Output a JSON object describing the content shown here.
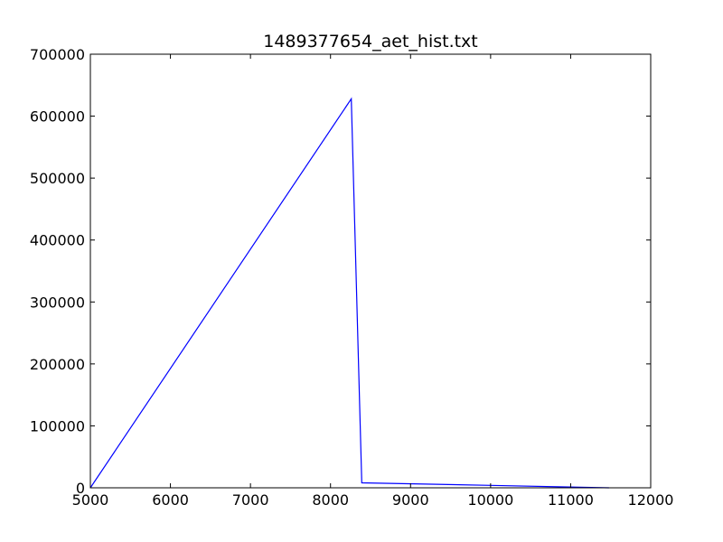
{
  "chart_data": {
    "type": "line",
    "title": "1489377654_aet_hist.txt",
    "xlabel": "",
    "ylabel": "",
    "xlim": [
      5000,
      12000
    ],
    "ylim": [
      0,
      700000
    ],
    "grid": false,
    "legend": "none",
    "x_ticks": [
      5000,
      6000,
      7000,
      8000,
      9000,
      10000,
      11000,
      12000
    ],
    "y_ticks": [
      0,
      100000,
      200000,
      300000,
      400000,
      500000,
      600000,
      700000
    ],
    "series": [
      {
        "color": "#0000ff",
        "x": [
          5000,
          8260,
          8390,
          10000,
          11480
        ],
        "y": [
          0,
          628000,
          8000,
          4000,
          0
        ]
      }
    ]
  }
}
